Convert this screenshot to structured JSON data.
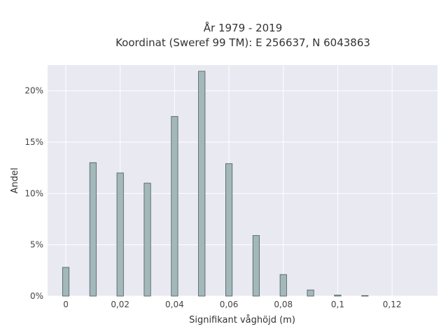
{
  "chart_data": {
    "type": "bar",
    "title": "År 1979 - 2019",
    "subtitle": "Koordinat (Sweref 99 TM): E 256637, N 6043863",
    "xlabel": "Signifikant våghöjd (m)",
    "ylabel": "Andel",
    "xlim": [
      -0.0067,
      0.1367
    ],
    "ylim": [
      0,
      22.5
    ],
    "x_ticks": [
      0,
      0.02,
      0.04,
      0.06,
      0.08,
      0.1,
      0.12
    ],
    "x_tick_labels": [
      "0",
      "0,02",
      "0,04",
      "0,06",
      "0,08",
      "0,1",
      "0,12"
    ],
    "y_ticks": [
      0,
      5,
      10,
      15,
      20
    ],
    "y_tick_labels": [
      "0%",
      "5%",
      "10%",
      "15%",
      "20%"
    ],
    "bar_width": 0.0024,
    "grid": true,
    "colors": {
      "bar_fill": "#a2b8ba",
      "bar_stroke": "#4a5a5a",
      "plot_bg": "#e9e9f2",
      "grid": "#ffffff"
    },
    "series": [
      {
        "x": [
          0,
          0.01,
          0.02,
          0.03,
          0.04,
          0.05,
          0.06,
          0.07,
          0.08,
          0.09,
          0.1,
          0.11
        ],
        "values": [
          2.8,
          13.0,
          12.0,
          11.0,
          17.5,
          21.9,
          12.9,
          5.9,
          2.1,
          0.6,
          0.1,
          0.05
        ]
      }
    ]
  }
}
